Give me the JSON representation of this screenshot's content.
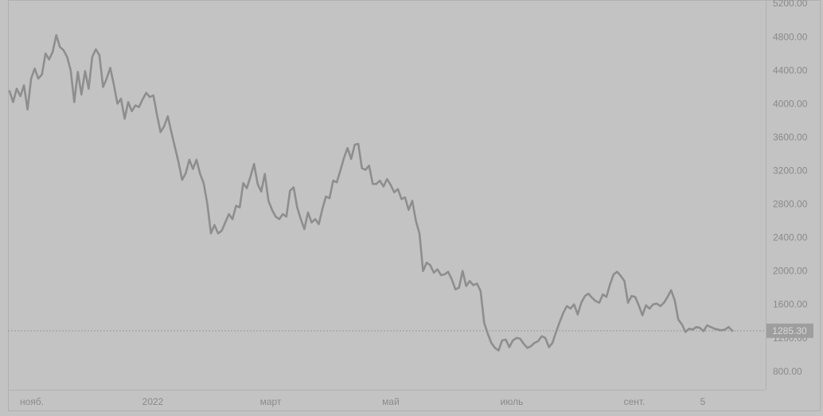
{
  "colors": {
    "background": "#c3c3c3",
    "line": "#8e8e8e",
    "axis_text": "#8a8a8a",
    "price_label_bg": "#9e9e9e",
    "price_label_text": "#d8d8d8",
    "reference_line": "#9a9a9a"
  },
  "chart_data": {
    "type": "line",
    "title": "",
    "xlabel": "",
    "ylabel": "",
    "grid": false,
    "ylim": [
      580,
      5240
    ],
    "x_tick_labels": [
      "нояб.",
      "2022",
      "март",
      "май",
      "июль",
      "сент.",
      "5"
    ],
    "y_tick_labels": [
      "5200.00",
      "4800.00",
      "4400.00",
      "4000.00",
      "3600.00",
      "3200.00",
      "2800.00",
      "2400.00",
      "2000.00",
      "1600.00",
      "1200.00",
      "800.00"
    ],
    "last_price_label": "1285.30",
    "last_price": 1285.3,
    "series": [
      {
        "values": [
          4150,
          4020,
          4180,
          4090,
          4220,
          3930,
          4300,
          4420,
          4300,
          4350,
          4600,
          4530,
          4620,
          4820,
          4680,
          4640,
          4560,
          4400,
          4020,
          4380,
          4110,
          4390,
          4180,
          4560,
          4650,
          4580,
          4200,
          4300,
          4430,
          4230,
          4000,
          4060,
          3820,
          4020,
          3910,
          3980,
          3960,
          4050,
          4130,
          4080,
          4100,
          3870,
          3660,
          3730,
          3850,
          3660,
          3480,
          3300,
          3090,
          3170,
          3330,
          3220,
          3330,
          3160,
          3050,
          2800,
          2450,
          2550,
          2450,
          2480,
          2580,
          2680,
          2620,
          2780,
          2760,
          3050,
          2990,
          3130,
          3280,
          3040,
          2950,
          3160,
          2840,
          2730,
          2650,
          2620,
          2680,
          2650,
          2960,
          3000,
          2760,
          2620,
          2500,
          2700,
          2580,
          2620,
          2560,
          2740,
          2890,
          2870,
          3080,
          3060,
          3200,
          3350,
          3470,
          3340,
          3510,
          3520,
          3230,
          3210,
          3260,
          3040,
          3040,
          3080,
          3010,
          3100,
          3030,
          2940,
          2980,
          2860,
          2880,
          2730,
          2840,
          2600,
          2450,
          2000,
          2100,
          2070,
          1980,
          2020,
          1950,
          1960,
          1990,
          1900,
          1780,
          1800,
          2000,
          1820,
          1880,
          1830,
          1850,
          1760,
          1380,
          1250,
          1140,
          1080,
          1050,
          1170,
          1180,
          1090,
          1170,
          1200,
          1190,
          1130,
          1080,
          1100,
          1140,
          1160,
          1220,
          1200,
          1090,
          1140,
          1270,
          1390,
          1500,
          1580,
          1550,
          1600,
          1480,
          1620,
          1700,
          1730,
          1680,
          1640,
          1620,
          1720,
          1690,
          1840,
          1960,
          1990,
          1940,
          1880,
          1620,
          1700,
          1690,
          1590,
          1470,
          1590,
          1550,
          1600,
          1610,
          1580,
          1620,
          1690,
          1770,
          1650,
          1420,
          1360,
          1270,
          1310,
          1300,
          1330,
          1320,
          1280,
          1350,
          1330,
          1310,
          1300,
          1290,
          1300,
          1330,
          1285
        ]
      }
    ]
  }
}
